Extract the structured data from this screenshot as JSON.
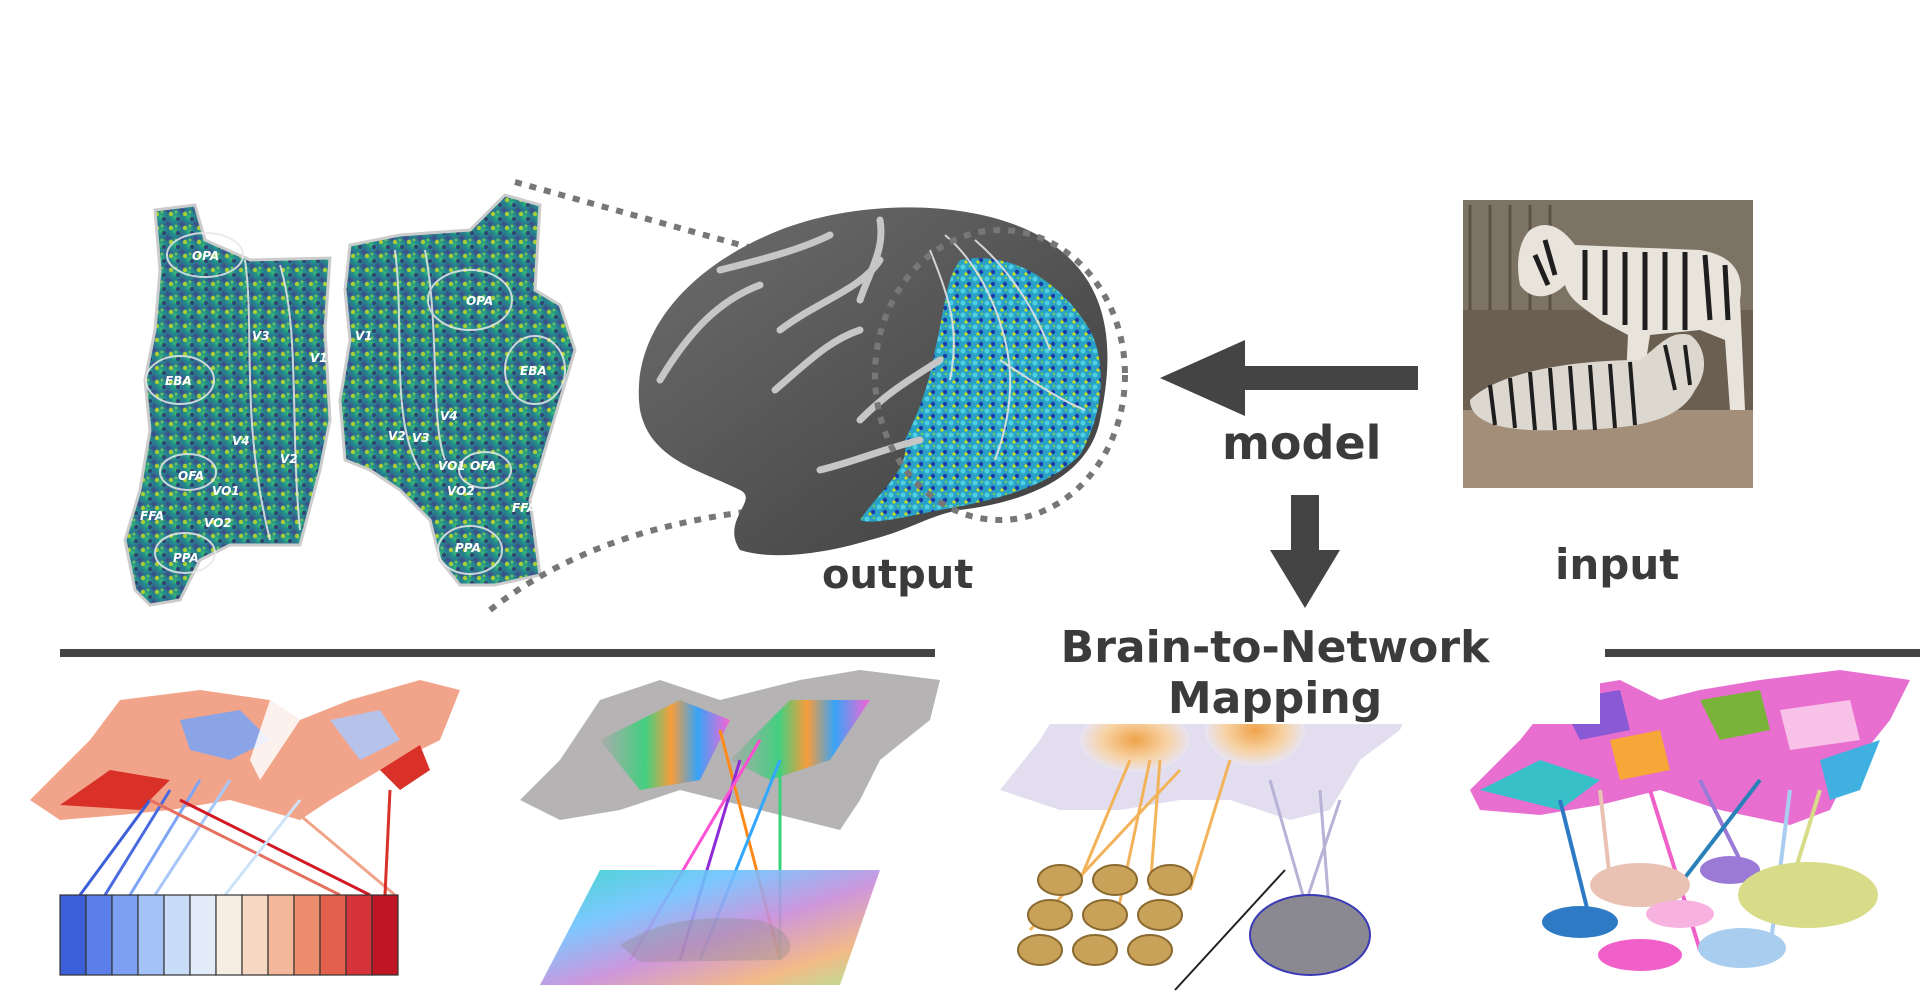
{
  "diagram": {
    "labels": {
      "output": "output",
      "model": "model",
      "input": "input",
      "title": "Brain-to-Network Mapping"
    },
    "flatmap_rois": {
      "left": [
        "OPA",
        "V3",
        "V1",
        "EBA",
        "V4",
        "V2",
        "OFA",
        "VO1",
        "FFA",
        "VO2",
        "PPA"
      ],
      "right": [
        "V1",
        "OPA",
        "EBA",
        "V4",
        "V2",
        "V3",
        "VO1",
        "OFA",
        "VO2",
        "FFA",
        "PPA"
      ]
    },
    "colors": {
      "arrow": "#444444",
      "brain_gray": "#5a5a5a",
      "viridis_dark": "#3b1f66",
      "viridis_mid": "#21908c",
      "viridis_bright": "#d9e52a",
      "diverging_blue": "#3b5fd8",
      "diverging_red": "#cf1b25"
    },
    "icons": {
      "arrow_left": "arrow-left-icon",
      "arrow_down": "arrow-down-icon"
    }
  }
}
